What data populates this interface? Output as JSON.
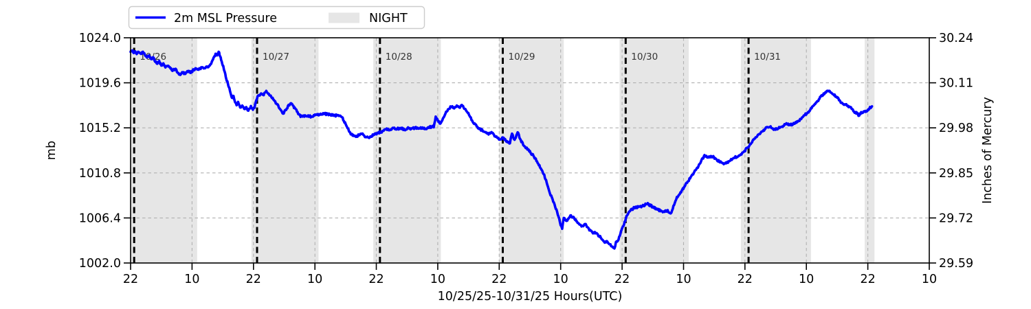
{
  "chart_data": {
    "type": "line",
    "title": "",
    "xlabel": "10/25/25-10/31/25  Hours(UTC)",
    "ylabel_left": "mb",
    "ylabel_right": "Inches of Mercury",
    "grid": true,
    "legend_position": "top-left",
    "night_label": "NIGHT",
    "night_color": "#e6e6e6",
    "grid_color": "#b0b0b0",
    "day_line_color": "#000000",
    "x_axis": {
      "start_hour": 0,
      "end_hour": 156,
      "tick_interval_hours": 12,
      "tick_labels": [
        "22",
        "10",
        "22",
        "10",
        "22",
        "10",
        "22",
        "10",
        "22",
        "10",
        "22",
        "10",
        "22",
        "10"
      ]
    },
    "y_axis_left": {
      "min": 1002.0,
      "max": 1024.0,
      "tick_values": [
        1002.0,
        1006.4,
        1010.8,
        1015.2,
        1019.6,
        1024.0
      ],
      "tick_labels": [
        "1002.0",
        "1006.4",
        "1010.8",
        "1015.2",
        "1019.6",
        "1024.0"
      ]
    },
    "y_axis_right": {
      "tick_labels": [
        "29.59",
        "29.72",
        "29.85",
        "29.98",
        "30.11",
        "30.24"
      ]
    },
    "day_lines": [
      {
        "hour": 0.7,
        "label": "10/26"
      },
      {
        "hour": 24.7,
        "label": "10/27"
      },
      {
        "hour": 48.7,
        "label": "10/28"
      },
      {
        "hour": 72.7,
        "label": "10/29"
      },
      {
        "hour": 96.7,
        "label": "10/30"
      },
      {
        "hour": 120.7,
        "label": "10/31"
      }
    ],
    "night_spans": [
      [
        0,
        13.0
      ],
      [
        23.6,
        36.7
      ],
      [
        47.4,
        60.6
      ],
      [
        72.0,
        84.6
      ],
      [
        95.5,
        109.0
      ],
      [
        119.2,
        132.9
      ],
      [
        143.4,
        145.3
      ]
    ],
    "noise_mb": 0.1,
    "noise_step_hours": 0.12,
    "series": [
      {
        "name": "2m MSL Pressure",
        "color": "#0000ff",
        "units": "mb",
        "points": [
          [
            0,
            1022.6
          ],
          [
            0.3,
            1022.8
          ],
          [
            0.6,
            1022.5
          ],
          [
            0.9,
            1022.7
          ],
          [
            1.2,
            1022.4
          ],
          [
            1.6,
            1022.6
          ],
          [
            2,
            1022.4
          ],
          [
            2.4,
            1022.6
          ],
          [
            2.8,
            1022.3
          ],
          [
            3.2,
            1022.1
          ],
          [
            3.6,
            1022.3
          ],
          [
            4,
            1021.9
          ],
          [
            4.4,
            1022.1
          ],
          [
            4.8,
            1021.7
          ],
          [
            5.2,
            1021.5
          ],
          [
            5.6,
            1021.7
          ],
          [
            6,
            1021.3
          ],
          [
            6.4,
            1021.5
          ],
          [
            6.8,
            1021.1
          ],
          [
            7.3,
            1021.3
          ],
          [
            7.8,
            1021.0
          ],
          [
            8.3,
            1020.8
          ],
          [
            8.8,
            1021.0
          ],
          [
            9.2,
            1020.6
          ],
          [
            9.7,
            1020.4
          ],
          [
            10.2,
            1020.6
          ],
          [
            10.7,
            1020.5
          ],
          [
            11.2,
            1020.7
          ],
          [
            11.8,
            1020.6
          ],
          [
            12.3,
            1020.9
          ],
          [
            12.8,
            1021.0
          ],
          [
            13.3,
            1020.9
          ],
          [
            13.8,
            1021.1
          ],
          [
            14.3,
            1021.0
          ],
          [
            14.8,
            1021.2
          ],
          [
            15.2,
            1021.1
          ],
          [
            15.6,
            1021.4
          ],
          [
            16,
            1021.8
          ],
          [
            16.3,
            1022.1
          ],
          [
            16.6,
            1022.4
          ],
          [
            16.9,
            1022.3
          ],
          [
            17.2,
            1022.6
          ],
          [
            17.5,
            1022.2
          ],
          [
            17.8,
            1021.7
          ],
          [
            18.1,
            1021.2
          ],
          [
            18.4,
            1020.6
          ],
          [
            18.7,
            1020.0
          ],
          [
            19,
            1019.5
          ],
          [
            19.2,
            1019.2
          ],
          [
            19.5,
            1018.6
          ],
          [
            19.8,
            1018.1
          ],
          [
            20.1,
            1018.3
          ],
          [
            20.4,
            1017.7
          ],
          [
            20.7,
            1017.4
          ],
          [
            21,
            1017.7
          ],
          [
            21.4,
            1017.2
          ],
          [
            21.8,
            1017.4
          ],
          [
            22.2,
            1017.0
          ],
          [
            22.6,
            1017.2
          ],
          [
            23,
            1016.9
          ],
          [
            23.5,
            1017.3
          ],
          [
            23.9,
            1017.0
          ],
          [
            24.2,
            1017.2
          ],
          [
            24.5,
            1017.8
          ],
          [
            24.8,
            1018.3
          ],
          [
            25.2,
            1018.4
          ],
          [
            25.5,
            1018.6
          ],
          [
            25.9,
            1018.4
          ],
          [
            26.2,
            1018.6
          ],
          [
            26.5,
            1018.8
          ],
          [
            27,
            1018.5
          ],
          [
            27.5,
            1018.2
          ],
          [
            28,
            1017.9
          ],
          [
            28.6,
            1017.5
          ],
          [
            29.2,
            1017.0
          ],
          [
            29.8,
            1016.6
          ],
          [
            30.5,
            1017.1
          ],
          [
            31.2,
            1017.6
          ],
          [
            31.8,
            1017.3
          ],
          [
            32.5,
            1016.8
          ],
          [
            33.2,
            1016.3
          ],
          [
            34.2,
            1016.4
          ],
          [
            35.3,
            1016.3
          ],
          [
            36.5,
            1016.5
          ],
          [
            37.6,
            1016.6
          ],
          [
            38.9,
            1016.5
          ],
          [
            40.3,
            1016.4
          ],
          [
            41.2,
            1016.3
          ],
          [
            42,
            1015.6
          ],
          [
            42.5,
            1015.1
          ],
          [
            43,
            1014.6
          ],
          [
            43.5,
            1014.5
          ],
          [
            44,
            1014.3
          ],
          [
            44.6,
            1014.5
          ],
          [
            45.2,
            1014.6
          ],
          [
            45.9,
            1014.3
          ],
          [
            46.6,
            1014.2
          ],
          [
            47.4,
            1014.5
          ],
          [
            48.3,
            1014.7
          ],
          [
            49.3,
            1014.9
          ],
          [
            50,
            1015.1
          ],
          [
            50.7,
            1015.0
          ],
          [
            51.4,
            1015.2
          ],
          [
            52.1,
            1015.1
          ],
          [
            52.8,
            1015.2
          ],
          [
            53.5,
            1015.0
          ],
          [
            54.2,
            1015.2
          ],
          [
            54.9,
            1015.1
          ],
          [
            55.6,
            1015.2
          ],
          [
            56.3,
            1015.1
          ],
          [
            57,
            1015.2
          ],
          [
            57.7,
            1015.1
          ],
          [
            58.4,
            1015.3
          ],
          [
            59.2,
            1015.3
          ],
          [
            59.6,
            1016.3
          ],
          [
            60.1,
            1015.8
          ],
          [
            60.5,
            1015.6
          ],
          [
            61,
            1016.1
          ],
          [
            61.5,
            1016.6
          ],
          [
            62,
            1017.0
          ],
          [
            62.7,
            1017.3
          ],
          [
            63.2,
            1017.1
          ],
          [
            63.7,
            1017.4
          ],
          [
            64.2,
            1017.2
          ],
          [
            64.7,
            1017.4
          ],
          [
            65.4,
            1017.0
          ],
          [
            66.2,
            1016.4
          ],
          [
            67.1,
            1015.6
          ],
          [
            68.1,
            1015.1
          ],
          [
            68.9,
            1014.9
          ],
          [
            69.8,
            1014.6
          ],
          [
            70.5,
            1014.8
          ],
          [
            71.2,
            1014.4
          ],
          [
            72.1,
            1014.1
          ],
          [
            72.9,
            1014.2
          ],
          [
            73.4,
            1013.9
          ],
          [
            74.1,
            1013.7
          ],
          [
            74.5,
            1014.6
          ],
          [
            75,
            1014.0
          ],
          [
            75.6,
            1014.8
          ],
          [
            76.2,
            1014.0
          ],
          [
            76.8,
            1013.5
          ],
          [
            77.5,
            1013.1
          ],
          [
            78.1,
            1012.8
          ],
          [
            78.8,
            1012.4
          ],
          [
            79.5,
            1011.8
          ],
          [
            80.1,
            1011.3
          ],
          [
            80.8,
            1010.6
          ],
          [
            81.5,
            1009.5
          ],
          [
            81.9,
            1008.8
          ],
          [
            82.3,
            1008.4
          ],
          [
            82.8,
            1007.7
          ],
          [
            83.3,
            1007.0
          ],
          [
            83.7,
            1006.4
          ],
          [
            84,
            1005.7
          ],
          [
            84.3,
            1005.3
          ],
          [
            84.6,
            1006.4
          ],
          [
            85.2,
            1006.1
          ],
          [
            85.9,
            1006.6
          ],
          [
            86.6,
            1006.4
          ],
          [
            87.3,
            1005.9
          ],
          [
            88.2,
            1005.6
          ],
          [
            88.9,
            1005.8
          ],
          [
            89.6,
            1005.2
          ],
          [
            90.2,
            1005.0
          ],
          [
            90.9,
            1004.9
          ],
          [
            91.6,
            1004.6
          ],
          [
            92.2,
            1004.3
          ],
          [
            92.6,
            1004.0
          ],
          [
            93,
            1004.1
          ],
          [
            93.6,
            1003.8
          ],
          [
            94,
            1003.6
          ],
          [
            94.5,
            1003.4
          ],
          [
            94.8,
            1004.0
          ],
          [
            95.3,
            1004.3
          ],
          [
            95.9,
            1005.2
          ],
          [
            96.6,
            1006.1
          ],
          [
            97,
            1006.7
          ],
          [
            97.5,
            1007.1
          ],
          [
            98.4,
            1007.4
          ],
          [
            99.4,
            1007.5
          ],
          [
            100.2,
            1007.6
          ],
          [
            100.9,
            1007.8
          ],
          [
            101.6,
            1007.6
          ],
          [
            102.3,
            1007.4
          ],
          [
            103,
            1007.2
          ],
          [
            103.6,
            1007.1
          ],
          [
            104.3,
            1007.0
          ],
          [
            104.9,
            1007.2
          ],
          [
            105.2,
            1006.9
          ],
          [
            105.5,
            1006.8
          ],
          [
            105.9,
            1007.3
          ],
          [
            106.3,
            1007.9
          ],
          [
            106.7,
            1008.4
          ],
          [
            107.4,
            1008.9
          ],
          [
            108.1,
            1009.4
          ],
          [
            108.8,
            1009.9
          ],
          [
            109.4,
            1010.4
          ],
          [
            110.1,
            1010.9
          ],
          [
            110.8,
            1011.3
          ],
          [
            111.5,
            1012.0
          ],
          [
            112.1,
            1012.5
          ],
          [
            112.8,
            1012.3
          ],
          [
            113.3,
            1012.4
          ],
          [
            113.7,
            1012.4
          ],
          [
            114.5,
            1012.1
          ],
          [
            115,
            1011.9
          ],
          [
            115.5,
            1011.8
          ],
          [
            116.1,
            1011.7
          ],
          [
            116.8,
            1011.9
          ],
          [
            117.3,
            1012.1
          ],
          [
            117.8,
            1012.3
          ],
          [
            118.6,
            1012.4
          ],
          [
            119.2,
            1012.6
          ],
          [
            119.8,
            1012.9
          ],
          [
            120.4,
            1013.2
          ],
          [
            120.9,
            1013.5
          ],
          [
            121.5,
            1013.9
          ],
          [
            122.2,
            1014.3
          ],
          [
            122.8,
            1014.6
          ],
          [
            123.4,
            1014.9
          ],
          [
            124.2,
            1015.2
          ],
          [
            124.9,
            1015.3
          ],
          [
            125.5,
            1015.1
          ],
          [
            126.2,
            1015.1
          ],
          [
            126.9,
            1015.3
          ],
          [
            127.5,
            1015.4
          ],
          [
            128.2,
            1015.6
          ],
          [
            128.9,
            1015.5
          ],
          [
            129.6,
            1015.6
          ],
          [
            130.3,
            1015.8
          ],
          [
            131,
            1016.1
          ],
          [
            131.6,
            1016.4
          ],
          [
            132.3,
            1016.7
          ],
          [
            132.9,
            1017.1
          ],
          [
            133.5,
            1017.4
          ],
          [
            134.2,
            1017.8
          ],
          [
            134.9,
            1018.3
          ],
          [
            135.6,
            1018.6
          ],
          [
            136.3,
            1018.8
          ],
          [
            136.9,
            1018.6
          ],
          [
            137.4,
            1018.4
          ],
          [
            137.9,
            1018.2
          ],
          [
            138.6,
            1017.8
          ],
          [
            139.2,
            1017.5
          ],
          [
            139.9,
            1017.4
          ],
          [
            140.6,
            1017.2
          ],
          [
            141.3,
            1016.8
          ],
          [
            141.9,
            1016.6
          ],
          [
            142.3,
            1016.4
          ],
          [
            142.7,
            1016.7
          ],
          [
            143.3,
            1016.8
          ],
          [
            143.9,
            1016.9
          ],
          [
            144.3,
            1017.1
          ],
          [
            144.8,
            1017.3
          ]
        ]
      }
    ]
  },
  "legend": {
    "pressure_label": "2m MSL Pressure",
    "night_label": "NIGHT"
  }
}
